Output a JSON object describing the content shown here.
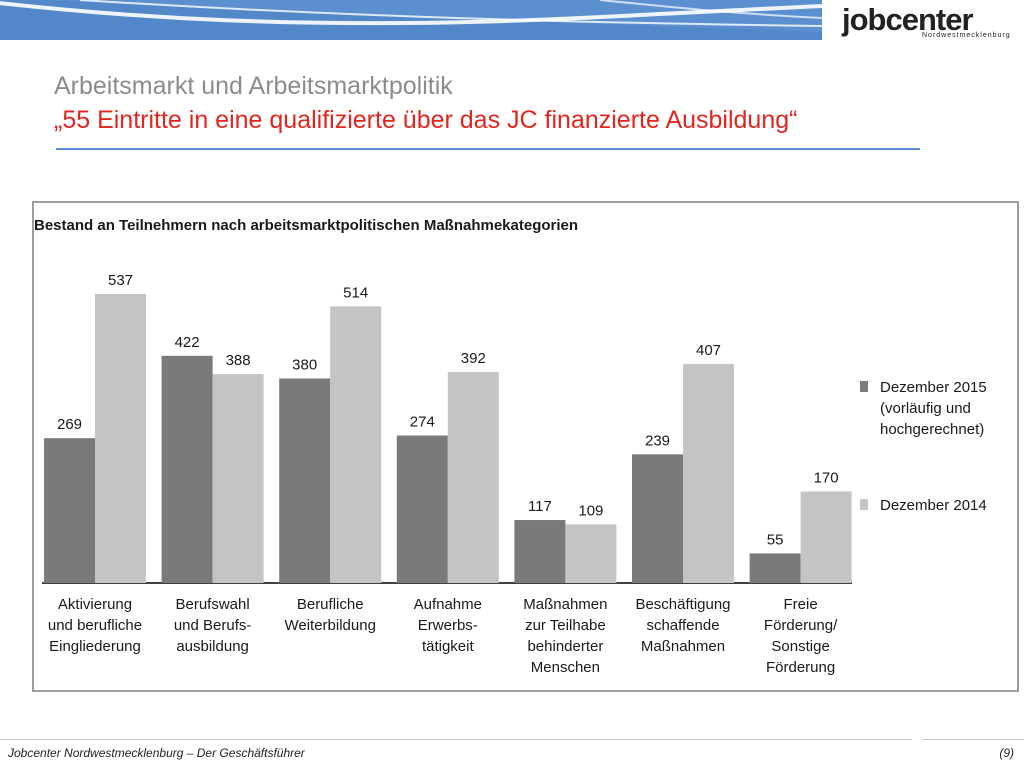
{
  "header": {
    "logo_text": "jobcenter",
    "logo_subtext": "Nordwestmecklenburg",
    "title": "Arbeitsmarkt und Arbeitsmarktpolitik",
    "subtitle": "„55 Eintritte in eine qualifizierte über das JC finanzierte Ausbildung“"
  },
  "footer": {
    "left": "Jobcenter Nordwestmecklenburg – Der Geschäftsführer",
    "right": "(9)"
  },
  "colors": {
    "banner": "#5b8fcf",
    "title_gray": "#8c8c8c",
    "subtitle_red": "#e3251e",
    "series_2015": "#7a7a7a",
    "series_2014": "#c4c4c4"
  },
  "chart_data": {
    "type": "bar",
    "title": "Bestand an Teilnehmern nach arbeitsmarktpolitischen Maßnahmekategorien",
    "categories": [
      [
        "Aktivierung",
        "und berufliche",
        "Eingliederung"
      ],
      [
        "Berufswahl",
        "und Berufs-",
        "ausbildung"
      ],
      [
        "Berufliche",
        "Weiterbildung"
      ],
      [
        "Aufnahme",
        "Erwerbs-",
        "tätigkeit"
      ],
      [
        "Maßnahmen",
        "zur Teilhabe",
        "behinderter",
        "Menschen"
      ],
      [
        "Beschäftigung",
        "schaffende",
        "Maßnahmen"
      ],
      [
        "Freie",
        "Förderung/",
        "Sonstige",
        "Förderung"
      ]
    ],
    "series": [
      {
        "name": [
          "Dezember 2015",
          "(vorläufig und",
          "hochgerechnet)"
        ],
        "color": "#7a7a7a",
        "values": [
          269,
          422,
          380,
          274,
          117,
          239,
          55
        ]
      },
      {
        "name": [
          "Dezember 2014"
        ],
        "color": "#c4c4c4",
        "values": [
          537,
          388,
          514,
          392,
          109,
          407,
          170
        ]
      }
    ],
    "ylim": [
      0,
      600
    ],
    "grid": false,
    "legend": "right"
  }
}
